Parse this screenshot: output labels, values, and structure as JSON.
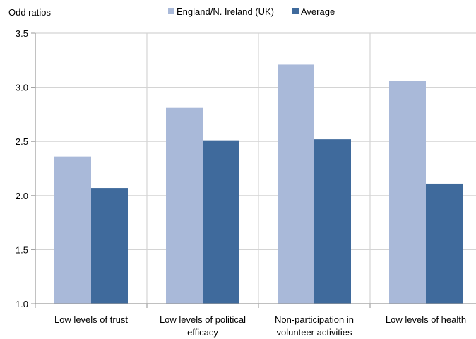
{
  "chart_data": {
    "type": "bar",
    "ylabel": "Odd ratios",
    "ylim": [
      1.0,
      3.5
    ],
    "yticks": [
      "1.0",
      "1.5",
      "2.0",
      "2.5",
      "3.0",
      "3.5"
    ],
    "categories": [
      [
        "Low levels of trust"
      ],
      [
        "Low levels of political",
        "efficacy"
      ],
      [
        "Non-participation in",
        "volunteer activities"
      ],
      [
        "Low levels of health"
      ]
    ],
    "series": [
      {
        "name": "England/N. Ireland (UK)",
        "color": "#a9b9d9",
        "values": [
          2.36,
          2.81,
          3.21,
          3.06
        ]
      },
      {
        "name": "Average",
        "color": "#3f6a9c",
        "values": [
          2.07,
          2.51,
          2.52,
          2.11
        ]
      }
    ],
    "grid": true,
    "legend_position": "top-center"
  }
}
